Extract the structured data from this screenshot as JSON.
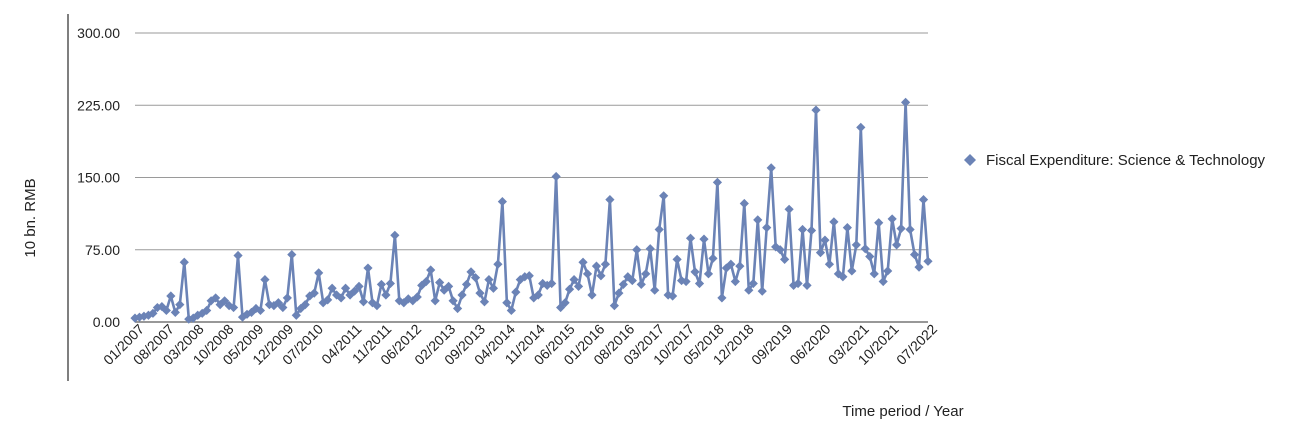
{
  "chart_data": {
    "type": "line",
    "xlabel": "Time period / Year",
    "ylabel": "10 bn. RMB",
    "ylim": [
      0,
      300
    ],
    "yticks": [
      "0.00",
      "75.00",
      "150.00",
      "225.00",
      "300.00"
    ],
    "grid": true,
    "legend_position": "right",
    "x_tick_labels": [
      "01/2007",
      "08/2007",
      "03/2008",
      "10/2008",
      "05/2009",
      "12/2009",
      "07/2010",
      "04/2011",
      "11/2011",
      "06/2012",
      "02/2013",
      "09/2013",
      "04/2014",
      "11/2014",
      "06/2015",
      "01/2016",
      "08/2016",
      "03/2017",
      "10/2017",
      "05/2018",
      "12/2018",
      "09/2019",
      "06/2020",
      "03/2021",
      "10/2021",
      "07/2022"
    ],
    "x_start": "01/2007",
    "x_end": "07/2022",
    "series": [
      {
        "name": "Fiscal Expenditure: Science & Technology",
        "color": "#6b83b6",
        "values": [
          4,
          5,
          6,
          7,
          9,
          15,
          16,
          12,
          27,
          10,
          18,
          62,
          3,
          4,
          7,
          9,
          12,
          22,
          25,
          18,
          22,
          17,
          15,
          69,
          5,
          8,
          10,
          14,
          12,
          44,
          18,
          17,
          20,
          15,
          25,
          70,
          7,
          14,
          18,
          27,
          30,
          51,
          20,
          23,
          35,
          28,
          25,
          35,
          28,
          32,
          37,
          21,
          56,
          20,
          17,
          39,
          28,
          40,
          90,
          22,
          20,
          24,
          22,
          26,
          38,
          42,
          54,
          22,
          41,
          33,
          37,
          22,
          14,
          28,
          39,
          52,
          46,
          30,
          21,
          44,
          35,
          60,
          125,
          20,
          12,
          31,
          44,
          47,
          48,
          25,
          28,
          40,
          38,
          40,
          151,
          15,
          20,
          34,
          44,
          37,
          62,
          50,
          28,
          58,
          48,
          60,
          127,
          17,
          30,
          39,
          47,
          43,
          75,
          39,
          50,
          76,
          33,
          96,
          131,
          28,
          27,
          65,
          43,
          42,
          87,
          52,
          40,
          86,
          50,
          66,
          145,
          25,
          56,
          60,
          42,
          58,
          123,
          33,
          40,
          106,
          32,
          98,
          160,
          78,
          75,
          65,
          117,
          38,
          40,
          96,
          38,
          95,
          220,
          72,
          85,
          60,
          104,
          50,
          47,
          98,
          53,
          80,
          202,
          76,
          68,
          50,
          103,
          42,
          53,
          107,
          80,
          97,
          228,
          96,
          70,
          57,
          127,
          63
        ]
      }
    ]
  }
}
